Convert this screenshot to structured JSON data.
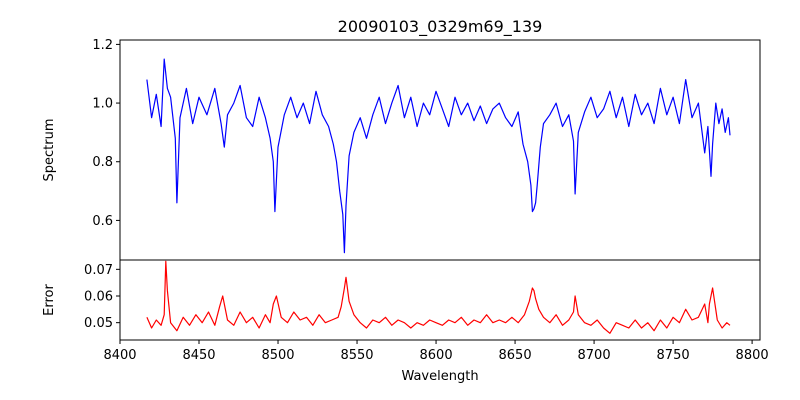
{
  "chart_data": [
    {
      "type": "line",
      "panel": "top",
      "title": "20090103_0329m69_139",
      "xlabel": "",
      "ylabel": "Spectrum",
      "xlim": [
        8400,
        8805
      ],
      "ylim": [
        0.465,
        1.215
      ],
      "yticks": [
        0.6,
        0.8,
        1.0,
        1.2
      ],
      "ytick_labels": [
        "0.6",
        "0.8",
        "1.0",
        "1.2"
      ],
      "grid": false,
      "series": [
        {
          "name": "Spectrum",
          "color": "#0000ff",
          "x": [
            8417,
            8420,
            8423,
            8426,
            8428,
            8430,
            8432,
            8435,
            8436,
            8438,
            8442,
            8446,
            8450,
            8455,
            8460,
            8464,
            8466,
            8468,
            8472,
            8476,
            8480,
            8484,
            8488,
            8492,
            8495,
            8497,
            8498,
            8500,
            8504,
            8508,
            8512,
            8516,
            8520,
            8524,
            8528,
            8532,
            8535,
            8537,
            8539,
            8541,
            8542,
            8543,
            8545,
            8548,
            8552,
            8556,
            8560,
            8564,
            8568,
            8572,
            8576,
            8580,
            8584,
            8588,
            8592,
            8596,
            8600,
            8604,
            8608,
            8612,
            8616,
            8620,
            8624,
            8628,
            8632,
            8636,
            8640,
            8644,
            8648,
            8652,
            8655,
            8658,
            8660,
            8661,
            8662,
            8663,
            8664,
            8666,
            8668,
            8672,
            8676,
            8680,
            8684,
            8687,
            8688,
            8690,
            8694,
            8698,
            8702,
            8706,
            8710,
            8714,
            8718,
            8722,
            8726,
            8730,
            8734,
            8738,
            8742,
            8746,
            8750,
            8754,
            8758,
            8762,
            8766,
            8770,
            8772,
            8774,
            8775,
            8777,
            8779,
            8781,
            8783,
            8785,
            8786
          ],
          "values": [
            1.08,
            0.95,
            1.03,
            0.92,
            1.15,
            1.05,
            1.02,
            0.88,
            0.66,
            0.95,
            1.05,
            0.93,
            1.02,
            0.96,
            1.05,
            0.93,
            0.85,
            0.96,
            1.0,
            1.06,
            0.95,
            0.92,
            1.02,
            0.95,
            0.88,
            0.8,
            0.63,
            0.85,
            0.96,
            1.02,
            0.95,
            1.0,
            0.93,
            1.04,
            0.96,
            0.92,
            0.86,
            0.8,
            0.7,
            0.62,
            0.49,
            0.65,
            0.82,
            0.9,
            0.95,
            0.88,
            0.96,
            1.02,
            0.93,
            1.0,
            1.06,
            0.95,
            1.02,
            0.92,
            1.0,
            0.96,
            1.04,
            0.98,
            0.92,
            1.02,
            0.96,
            1.0,
            0.94,
            0.99,
            0.93,
            0.98,
            1.0,
            0.95,
            0.92,
            0.97,
            0.86,
            0.8,
            0.72,
            0.63,
            0.64,
            0.66,
            0.72,
            0.85,
            0.93,
            0.96,
            1.0,
            0.92,
            0.96,
            0.87,
            0.69,
            0.9,
            0.97,
            1.02,
            0.95,
            0.98,
            1.04,
            0.95,
            1.02,
            0.92,
            1.03,
            0.96,
            1.0,
            0.93,
            1.05,
            0.96,
            1.02,
            0.93,
            1.08,
            0.95,
            1.0,
            0.83,
            0.92,
            0.75,
            0.86,
            1.0,
            0.93,
            0.98,
            0.9,
            0.95,
            0.89
          ]
        }
      ]
    },
    {
      "type": "line",
      "panel": "bottom",
      "title": "",
      "xlabel": "Wavelength",
      "ylabel": "Error",
      "xlim": [
        8400,
        8805
      ],
      "ylim": [
        0.0435,
        0.0735
      ],
      "xticks": [
        8400,
        8450,
        8500,
        8550,
        8600,
        8650,
        8700,
        8750,
        8800
      ],
      "xtick_labels": [
        "8400",
        "8450",
        "8500",
        "8550",
        "8600",
        "8650",
        "8700",
        "8750",
        "8800"
      ],
      "yticks": [
        0.05,
        0.06,
        0.07
      ],
      "ytick_labels": [
        "0.05",
        "0.06",
        "0.07"
      ],
      "grid": false,
      "series": [
        {
          "name": "Error",
          "color": "#ff0000",
          "x": [
            8417,
            8420,
            8423,
            8426,
            8428,
            8429,
            8430,
            8432,
            8436,
            8440,
            8444,
            8448,
            8452,
            8456,
            8460,
            8463,
            8465,
            8468,
            8472,
            8476,
            8480,
            8484,
            8488,
            8492,
            8495,
            8497,
            8499,
            8502,
            8506,
            8510,
            8514,
            8518,
            8522,
            8526,
            8530,
            8534,
            8538,
            8540,
            8542,
            8543,
            8545,
            8548,
            8552,
            8556,
            8560,
            8564,
            8568,
            8572,
            8576,
            8580,
            8584,
            8588,
            8592,
            8596,
            8600,
            8604,
            8608,
            8612,
            8616,
            8620,
            8624,
            8628,
            8632,
            8636,
            8640,
            8644,
            8648,
            8652,
            8656,
            8659,
            8661,
            8662,
            8663,
            8665,
            8668,
            8672,
            8676,
            8680,
            8684,
            8687,
            8688,
            8690,
            8694,
            8698,
            8702,
            8706,
            8710,
            8714,
            8718,
            8722,
            8726,
            8730,
            8734,
            8738,
            8742,
            8746,
            8750,
            8754,
            8758,
            8762,
            8766,
            8770,
            8772,
            8773,
            8775,
            8778,
            8781,
            8784,
            8786
          ],
          "values": [
            0.052,
            0.048,
            0.051,
            0.049,
            0.053,
            0.073,
            0.062,
            0.05,
            0.047,
            0.052,
            0.049,
            0.053,
            0.05,
            0.054,
            0.049,
            0.056,
            0.06,
            0.051,
            0.049,
            0.054,
            0.05,
            0.052,
            0.048,
            0.053,
            0.05,
            0.057,
            0.06,
            0.052,
            0.05,
            0.054,
            0.051,
            0.052,
            0.049,
            0.053,
            0.05,
            0.051,
            0.052,
            0.056,
            0.063,
            0.067,
            0.058,
            0.053,
            0.05,
            0.048,
            0.051,
            0.05,
            0.052,
            0.049,
            0.051,
            0.05,
            0.048,
            0.05,
            0.049,
            0.051,
            0.05,
            0.049,
            0.051,
            0.05,
            0.052,
            0.049,
            0.051,
            0.05,
            0.053,
            0.05,
            0.051,
            0.05,
            0.052,
            0.05,
            0.053,
            0.058,
            0.063,
            0.062,
            0.059,
            0.055,
            0.052,
            0.05,
            0.053,
            0.049,
            0.051,
            0.054,
            0.06,
            0.053,
            0.05,
            0.049,
            0.051,
            0.048,
            0.046,
            0.05,
            0.049,
            0.048,
            0.051,
            0.048,
            0.05,
            0.047,
            0.051,
            0.048,
            0.052,
            0.05,
            0.055,
            0.051,
            0.052,
            0.057,
            0.05,
            0.057,
            0.063,
            0.051,
            0.048,
            0.05,
            0.049
          ]
        }
      ]
    }
  ]
}
